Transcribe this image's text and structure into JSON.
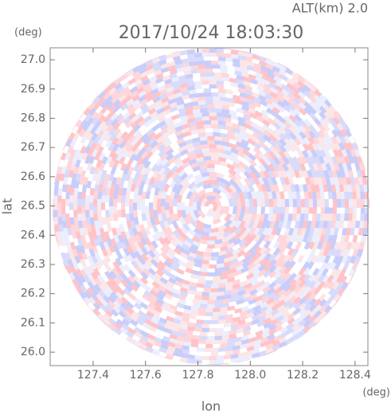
{
  "chart_data": {
    "type": "radar-ppi",
    "altitude_label": "ALT(km) 2.0",
    "title": "2017/10/24 18:03:30",
    "y_unit": "(deg)",
    "x_unit": "(deg)",
    "ylabel": "lat",
    "xlabel": "lon",
    "xlim": [
      127.236,
      128.449
    ],
    "ylim": [
      25.954,
      27.041
    ],
    "xticks": [
      127.4,
      127.6,
      127.8,
      {
        "value": 128.0,
        "label": "128.0"
      },
      128.2,
      128.4
    ],
    "yticks": [
      {
        "value": 26.0,
        "label": "26.0"
      },
      26.1,
      26.2,
      26.3,
      26.4,
      26.5,
      26.6,
      26.7,
      26.8,
      26.9,
      {
        "value": 27.0,
        "label": "27.0"
      }
    ]
  }
}
